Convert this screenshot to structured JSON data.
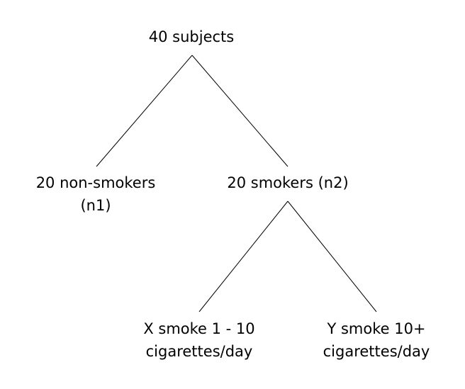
{
  "nodes": {
    "root": {
      "lines": [
        "40 subjects"
      ]
    },
    "non_smokers": {
      "lines": [
        "20 non-smokers",
        "(n1)"
      ]
    },
    "smokers": {
      "lines": [
        "20 smokers (n2)"
      ]
    },
    "group_x": {
      "lines": [
        "X smoke 1 - 10",
        "cigarettes/day"
      ]
    },
    "group_y": {
      "lines": [
        "Y smoke 10+",
        "cigarettes/day"
      ]
    }
  },
  "edges": [
    {
      "from": "root",
      "to": "non_smokers"
    },
    {
      "from": "root",
      "to": "smokers"
    },
    {
      "from": "smokers",
      "to": "group_x"
    },
    {
      "from": "smokers",
      "to": "group_y"
    }
  ],
  "colors": {
    "line": "#000000",
    "text": "#000000",
    "background": "#ffffff"
  }
}
